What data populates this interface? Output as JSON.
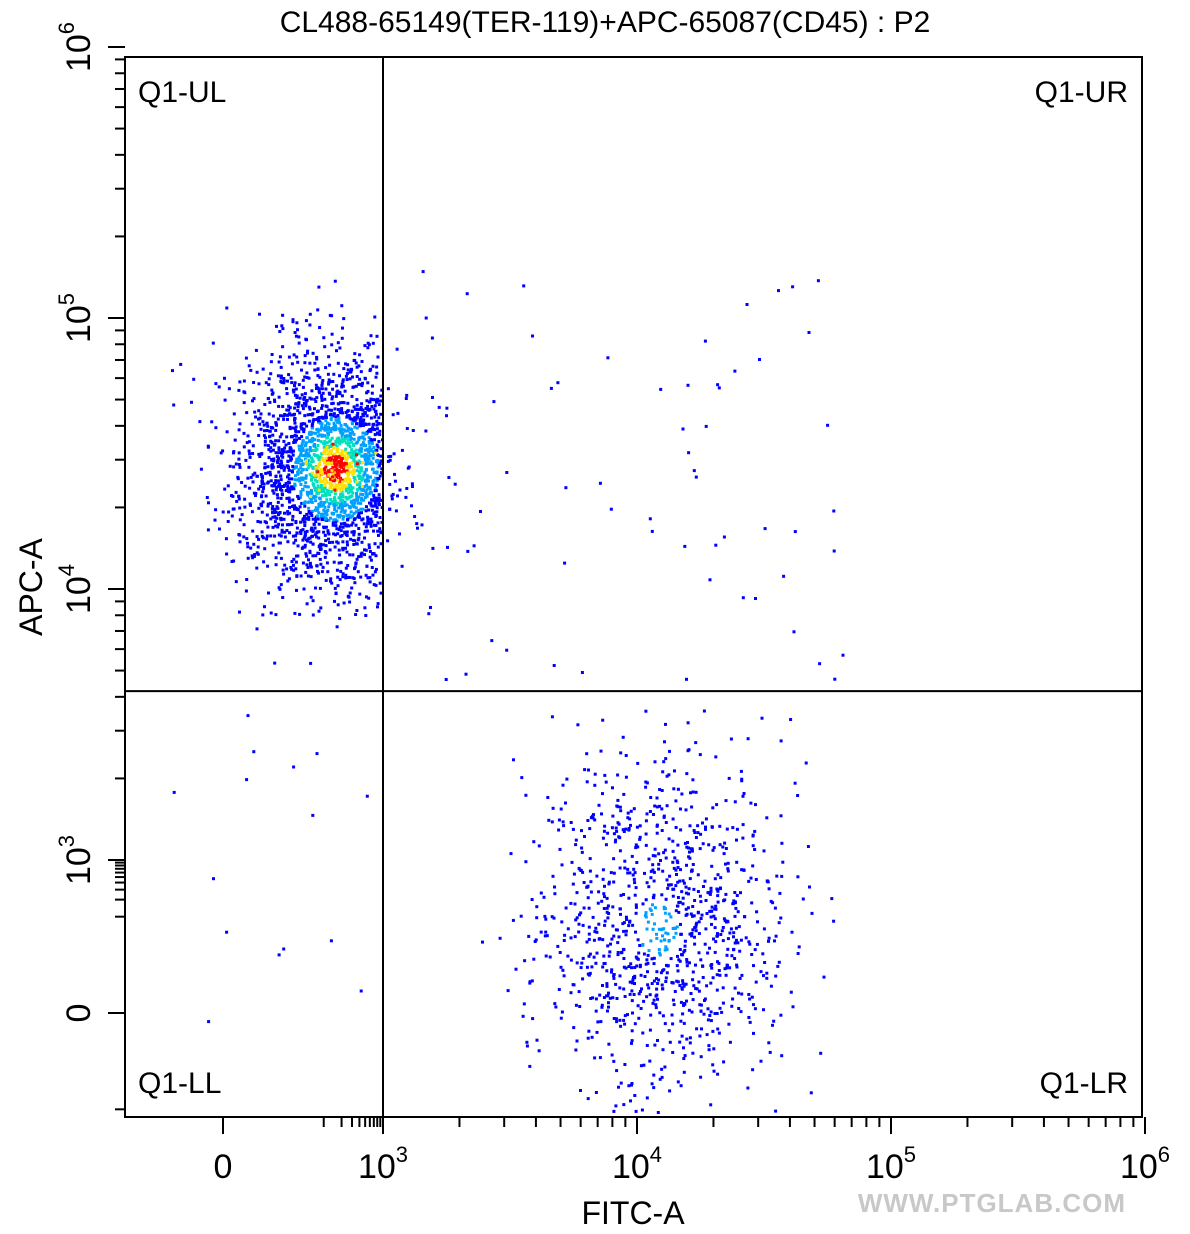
{
  "chart_data": {
    "type": "scatter",
    "subtype": "flow-cytometry-density-dot-plot",
    "title": "CL488-65149(TER-119)+APC-65087(CD45) : P2",
    "xlabel": "FITC-A",
    "ylabel": "APC-A",
    "x_scale": "biexponential",
    "y_scale": "biexponential",
    "x_ticks": [
      {
        "value": 0,
        "base": "0",
        "exp": ""
      },
      {
        "value": 1000,
        "base": "10",
        "exp": "3"
      },
      {
        "value": 10000,
        "base": "10",
        "exp": "4"
      },
      {
        "value": 100000,
        "base": "10",
        "exp": "5"
      },
      {
        "value": 1000000,
        "base": "10",
        "exp": "6"
      }
    ],
    "y_ticks": [
      {
        "value": 0,
        "base": "0",
        "exp": ""
      },
      {
        "value": 1000,
        "base": "10",
        "exp": "3"
      },
      {
        "value": 10000,
        "base": "10",
        "exp": "4"
      },
      {
        "value": 100000,
        "base": "10",
        "exp": "5"
      },
      {
        "value": 1000000,
        "base": "10",
        "exp": "6"
      }
    ],
    "gates": {
      "x_threshold": 1000,
      "y_threshold": 4200
    },
    "quadrants": [
      {
        "id": "UL",
        "label": "Q1-UL",
        "position": "top-left"
      },
      {
        "id": "UR",
        "label": "Q1-UR",
        "position": "top-right"
      },
      {
        "id": "LL",
        "label": "Q1-LL",
        "position": "bottom-left"
      },
      {
        "id": "LR",
        "label": "Q1-LR",
        "position": "bottom-right"
      }
    ],
    "populations": [
      {
        "quadrant": "UL",
        "description": "dense population",
        "x_center": 150,
        "y_center": 28000,
        "relative_density": "high"
      },
      {
        "quadrant": "LR",
        "description": "dense population",
        "x_center": 12000,
        "y_center": 150,
        "relative_density": "medium"
      },
      {
        "quadrant": "UR",
        "description": "sparse events",
        "relative_density": "very low"
      },
      {
        "quadrant": "LL",
        "description": "sparse events",
        "relative_density": "very low"
      }
    ],
    "color_scale": [
      "#0000ff",
      "#00a0ff",
      "#00e0c0",
      "#ffe000",
      "#ff0000"
    ]
  },
  "watermark": "WWW.PTGLAB.COM"
}
